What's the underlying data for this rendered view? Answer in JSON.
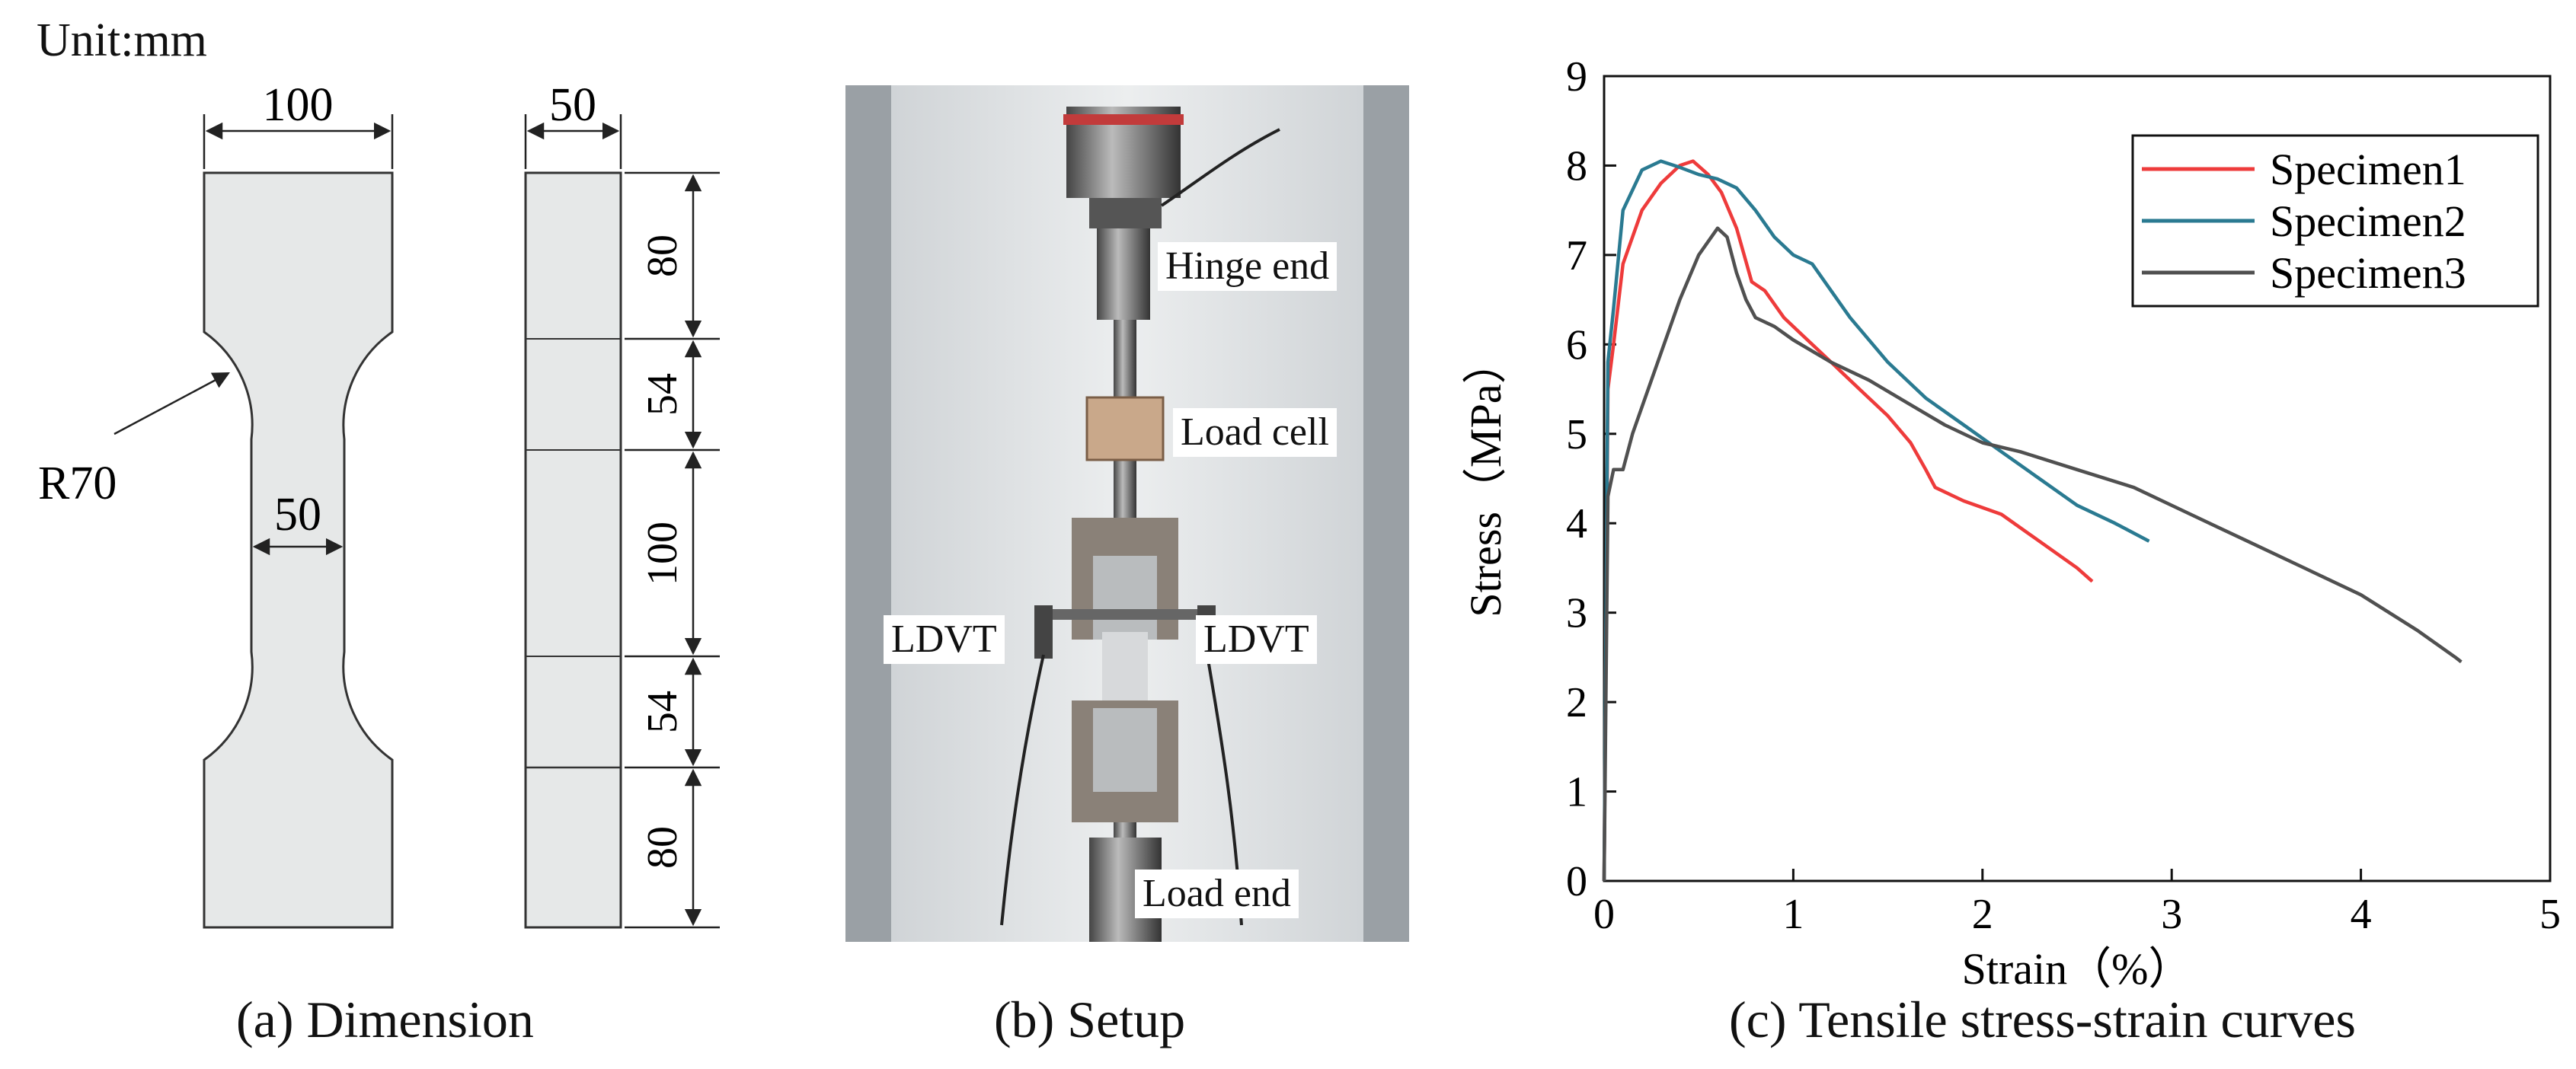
{
  "panel_a": {
    "unit": "Unit:mm",
    "front_width": "100",
    "neck_width": "50",
    "radius": "R70",
    "thickness": "50",
    "segments": [
      "80",
      "54",
      "100",
      "54",
      "80"
    ],
    "caption": "(a) Dimension"
  },
  "panel_b": {
    "labels": {
      "hinge_end": "Hinge end",
      "load_cell": "Load cell",
      "ldvt_left": "LDVT",
      "ldvt_right": "LDVT",
      "load_end": "Load end"
    },
    "caption": "(b) Setup"
  },
  "panel_c": {
    "caption": "(c) Tensile stress-strain curves"
  },
  "colors": {
    "specimen_fill": "#e6e8e8",
    "specimen1": "#ee3b3b",
    "specimen2": "#2a7a91",
    "specimen3": "#505050"
  },
  "chart_data": {
    "type": "line",
    "xlabel": "Strain（%）",
    "ylabel": "Stress（MPa）",
    "xlim": [
      0,
      5
    ],
    "ylim": [
      0,
      9
    ],
    "xticks": [
      "0",
      "1",
      "2",
      "3",
      "4",
      "5"
    ],
    "yticks": [
      "0",
      "1",
      "2",
      "3",
      "4",
      "5",
      "6",
      "7",
      "8",
      "9"
    ],
    "grid": false,
    "legend_position": "top-right",
    "series": [
      {
        "name": "Specimen1",
        "x": [
          0,
          0.02,
          0.05,
          0.1,
          0.2,
          0.3,
          0.4,
          0.47,
          0.55,
          0.62,
          0.7,
          0.78,
          0.85,
          0.95,
          1.05,
          1.2,
          1.35,
          1.5,
          1.62,
          1.7,
          1.75,
          1.9,
          2.1,
          2.3,
          2.5,
          2.58
        ],
        "y": [
          0,
          5.5,
          6.0,
          6.9,
          7.5,
          7.8,
          8.0,
          8.05,
          7.9,
          7.7,
          7.3,
          6.7,
          6.6,
          6.3,
          6.1,
          5.8,
          5.5,
          5.2,
          4.9,
          4.6,
          4.4,
          4.25,
          4.1,
          3.8,
          3.5,
          3.35
        ]
      },
      {
        "name": "Specimen2",
        "x": [
          0,
          0.02,
          0.05,
          0.1,
          0.2,
          0.3,
          0.4,
          0.5,
          0.6,
          0.7,
          0.8,
          0.9,
          1.0,
          1.1,
          1.2,
          1.3,
          1.5,
          1.7,
          1.9,
          2.1,
          2.3,
          2.5,
          2.7,
          2.88
        ],
        "y": [
          0,
          5.8,
          6.4,
          7.5,
          7.95,
          8.05,
          7.98,
          7.9,
          7.85,
          7.75,
          7.5,
          7.2,
          7.0,
          6.9,
          6.6,
          6.3,
          5.8,
          5.4,
          5.1,
          4.8,
          4.5,
          4.2,
          4.0,
          3.8
        ]
      },
      {
        "name": "Specimen3",
        "x": [
          0,
          0.02,
          0.05,
          0.1,
          0.15,
          0.2,
          0.3,
          0.4,
          0.5,
          0.6,
          0.65,
          0.7,
          0.75,
          0.8,
          0.9,
          1.0,
          1.2,
          1.4,
          1.6,
          1.8,
          2.0,
          2.2,
          2.5,
          2.8,
          3.1,
          3.4,
          3.7,
          4.0,
          4.3,
          4.5,
          4.53
        ],
        "y": [
          0,
          4.3,
          4.6,
          4.6,
          5.0,
          5.3,
          5.9,
          6.5,
          7.0,
          7.3,
          7.2,
          6.8,
          6.5,
          6.3,
          6.2,
          6.05,
          5.8,
          5.6,
          5.35,
          5.1,
          4.9,
          4.8,
          4.6,
          4.4,
          4.1,
          3.8,
          3.5,
          3.2,
          2.8,
          2.5,
          2.45
        ]
      }
    ]
  }
}
